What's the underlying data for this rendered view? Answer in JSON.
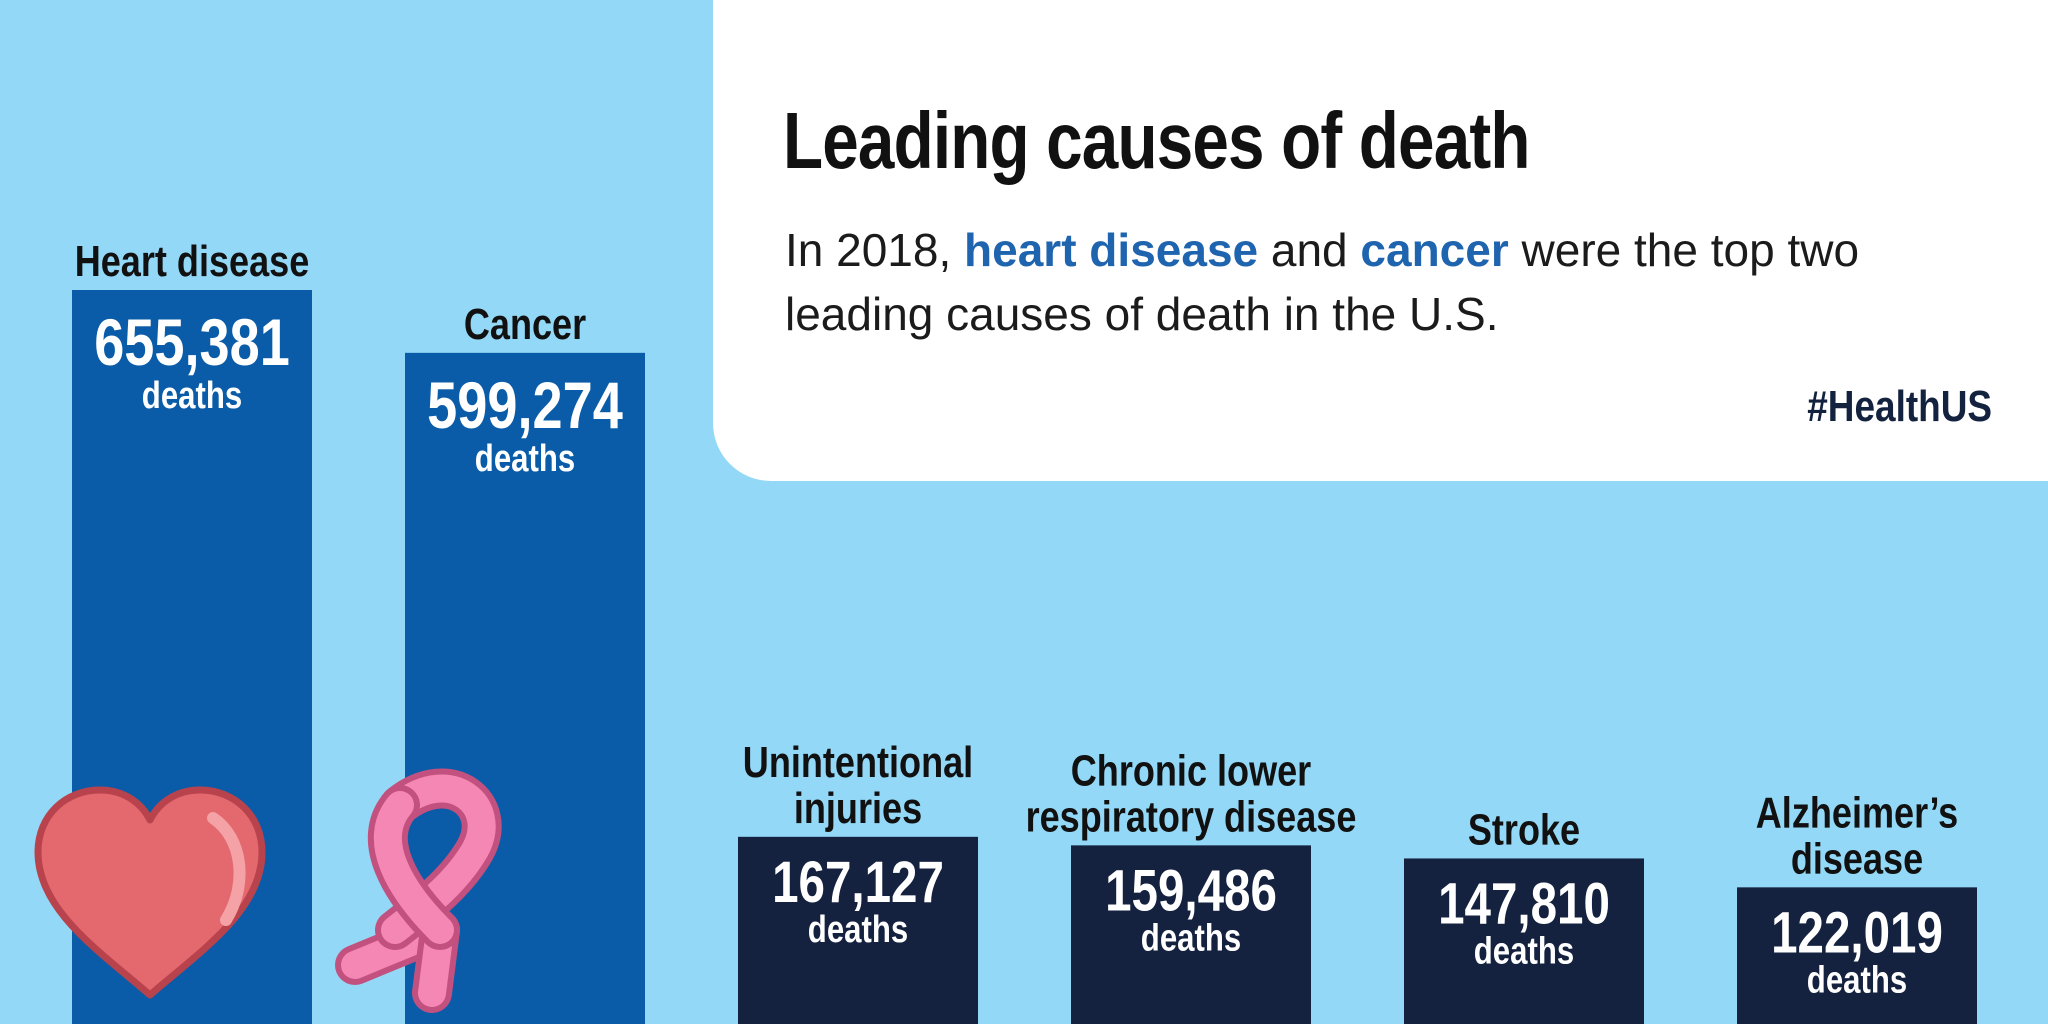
{
  "title": "Leading causes of death",
  "subtitle": {
    "part1": "In 2018, ",
    "highlight1": "heart disease",
    "part2": " and ",
    "highlight2": "cancer",
    "part3": " were the top two leading causes of death in the U.S."
  },
  "hashtag": "#HealthUS",
  "colors": {
    "background": "#93d8f6",
    "highlight_bar": "#0a5ca8",
    "other_bar": "#14213f",
    "highlight_text": "#1e64ae",
    "heart": "#e4696f",
    "ribbon": "#f487b3"
  },
  "chart_data": {
    "type": "bar",
    "categories": [
      [
        "Heart disease"
      ],
      [
        "Cancer"
      ],
      [
        "Unintentional",
        "injuries"
      ],
      [
        "Chronic lower",
        "respiratory disease"
      ],
      [
        "Stroke"
      ],
      [
        "Alzheimer’s",
        "disease"
      ]
    ],
    "values": [
      655381,
      599274,
      167127,
      159486,
      147810,
      122019
    ],
    "value_labels": [
      "655,381",
      "599,274",
      "167,127",
      "159,486",
      "147,810",
      "122,019"
    ],
    "unit_label": "deaths",
    "highlighted": [
      true,
      true,
      false,
      false,
      false,
      false
    ],
    "icons": [
      "heart-icon",
      "ribbon-icon",
      "",
      "",
      "",
      ""
    ]
  }
}
